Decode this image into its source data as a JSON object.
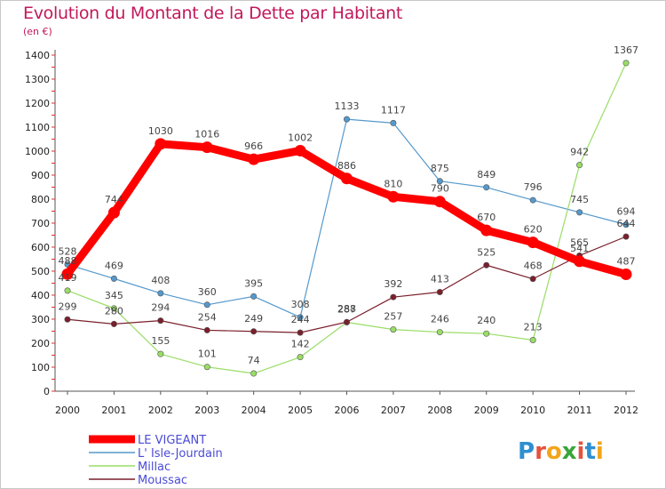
{
  "title": "Evolution du Montant de la Dette par Habitant",
  "unit": "(en €)",
  "brand": "Proxiti",
  "chart_data": {
    "type": "line",
    "title": "Evolution du Montant de la Dette par Habitant",
    "ylabel": "(en €)",
    "x": [
      "2000",
      "2001",
      "2002",
      "2003",
      "2004",
      "2005",
      "2006",
      "2007",
      "2008",
      "2009",
      "2010",
      "2011",
      "2012"
    ],
    "ylim": [
      0,
      1400
    ],
    "yticks": [
      0,
      100,
      200,
      300,
      400,
      500,
      600,
      700,
      800,
      900,
      1000,
      1100,
      1200,
      1300,
      1400
    ],
    "grid": false,
    "legend_position": "bottom-left",
    "series": [
      {
        "name": "LE VIGEANT",
        "color": "#ff0000",
        "values": [
          488,
          744,
          1030,
          1016,
          966,
          1002,
          886,
          810,
          790,
          670,
          620,
          541,
          487
        ]
      },
      {
        "name": "L' Isle-Jourdain",
        "color": "#5599cc",
        "values": [
          528,
          469,
          408,
          360,
          395,
          308,
          1133,
          1117,
          875,
          849,
          796,
          745,
          694
        ]
      },
      {
        "name": "Millac",
        "color": "#99dd66",
        "values": [
          419,
          345,
          155,
          101,
          74,
          142,
          287,
          257,
          246,
          240,
          213,
          942,
          1367
        ]
      },
      {
        "name": "Moussac",
        "color": "#7a1f2b",
        "values": [
          299,
          280,
          294,
          254,
          249,
          244,
          288,
          392,
          413,
          525,
          468,
          565,
          644
        ]
      }
    ]
  }
}
